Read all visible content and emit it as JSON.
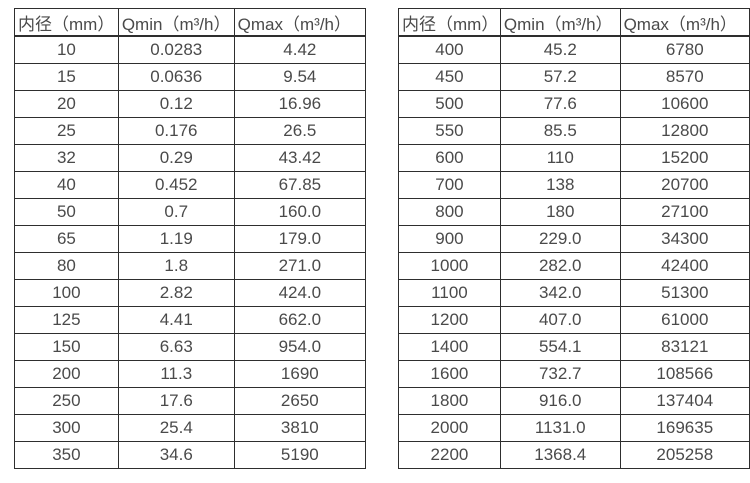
{
  "page": {
    "background_color": "#ffffff",
    "text_color": "#4a4a4a",
    "border_color": "#2e2e2e"
  },
  "tables": [
    {
      "headers": [
        "内径（mm）",
        "Qmin（m³/h）",
        "Qmax（m³/h）"
      ],
      "rows": [
        [
          "10",
          "0.0283",
          "4.42"
        ],
        [
          "15",
          "0.0636",
          "9.54"
        ],
        [
          "20",
          "0.12",
          "16.96"
        ],
        [
          "25",
          "0.176",
          "26.5"
        ],
        [
          "32",
          "0.29",
          "43.42"
        ],
        [
          "40",
          "0.452",
          "67.85"
        ],
        [
          "50",
          "0.7",
          "160.0"
        ],
        [
          "65",
          "1.19",
          "179.0"
        ],
        [
          "80",
          "1.8",
          "271.0"
        ],
        [
          "100",
          "2.82",
          "424.0"
        ],
        [
          "125",
          "4.41",
          "662.0"
        ],
        [
          "150",
          "6.63",
          "954.0"
        ],
        [
          "200",
          "11.3",
          "1690"
        ],
        [
          "250",
          "17.6",
          "2650"
        ],
        [
          "300",
          "25.4",
          "3810"
        ],
        [
          "350",
          "34.6",
          "5190"
        ]
      ]
    },
    {
      "headers": [
        "内径（mm）",
        "Qmin（m³/h）",
        "Qmax（m³/h）"
      ],
      "rows": [
        [
          "400",
          "45.2",
          "6780"
        ],
        [
          "450",
          "57.2",
          "8570"
        ],
        [
          "500",
          "77.6",
          "10600"
        ],
        [
          "550",
          "85.5",
          "12800"
        ],
        [
          "600",
          "110",
          "15200"
        ],
        [
          "700",
          "138",
          "20700"
        ],
        [
          "800",
          "180",
          "27100"
        ],
        [
          "900",
          "229.0",
          "34300"
        ],
        [
          "1000",
          "282.0",
          "42400"
        ],
        [
          "1100",
          "342.0",
          "51300"
        ],
        [
          "1200",
          "407.0",
          "61000"
        ],
        [
          "1400",
          "554.1",
          "83121"
        ],
        [
          "1600",
          "732.7",
          "108566"
        ],
        [
          "1800",
          "916.0",
          "137404"
        ],
        [
          "2000",
          "1131.0",
          "169635"
        ],
        [
          "2200",
          "1368.4",
          "205258"
        ]
      ]
    }
  ]
}
